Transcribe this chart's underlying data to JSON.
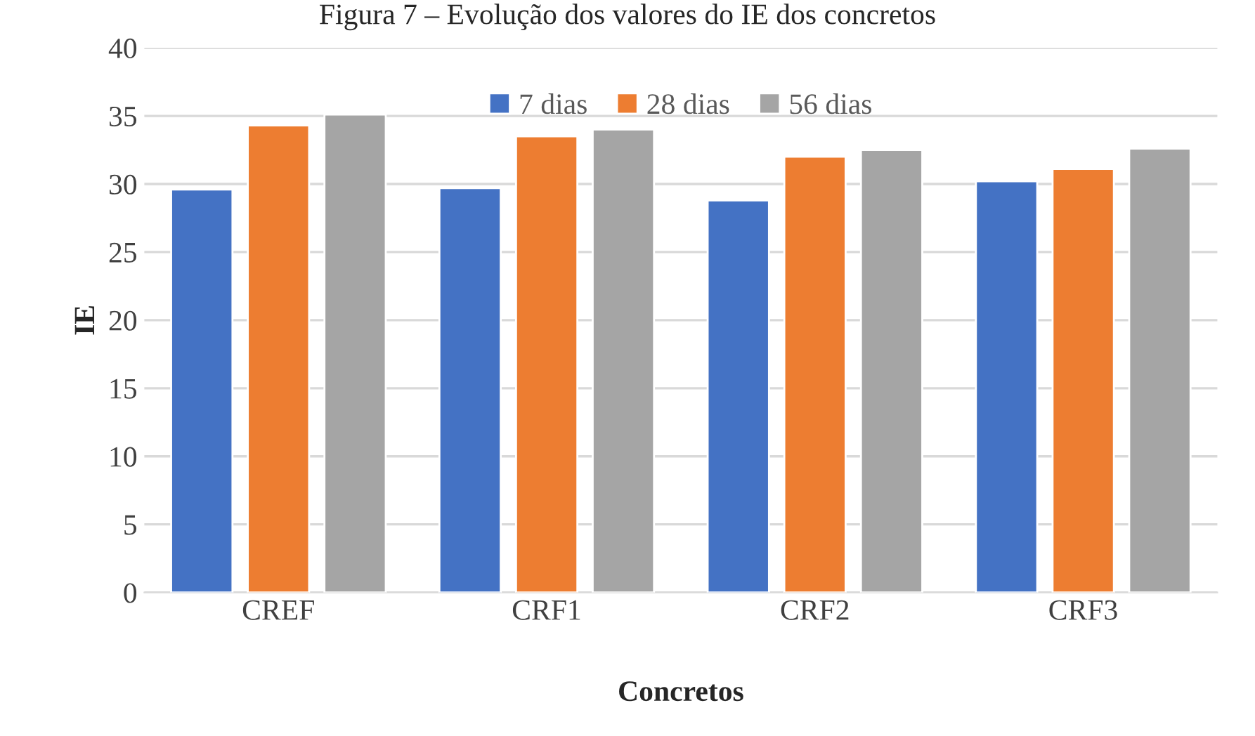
{
  "chart_data": {
    "type": "bar",
    "title": "Figura 7 – Evolução dos valores do IE dos concretos",
    "xlabel": "Concretos",
    "ylabel": "IE",
    "categories": [
      "CREF",
      "CRF1",
      "CRF2",
      "CRF3"
    ],
    "series": [
      {
        "name": "7 dias",
        "color": "#4472c4",
        "values": [
          29.6,
          29.7,
          28.8,
          30.2
        ]
      },
      {
        "name": "28 dias",
        "color": "#ed7d31",
        "values": [
          34.3,
          33.5,
          32.0,
          31.1
        ]
      },
      {
        "name": "56 dias",
        "color": "#a5a5a5",
        "values": [
          35.1,
          34.0,
          32.5,
          32.6
        ]
      }
    ],
    "ylim": [
      0,
      40
    ],
    "yticks": [
      0,
      5,
      10,
      15,
      20,
      25,
      30,
      35,
      40
    ],
    "grid": "y",
    "legend": "top"
  }
}
